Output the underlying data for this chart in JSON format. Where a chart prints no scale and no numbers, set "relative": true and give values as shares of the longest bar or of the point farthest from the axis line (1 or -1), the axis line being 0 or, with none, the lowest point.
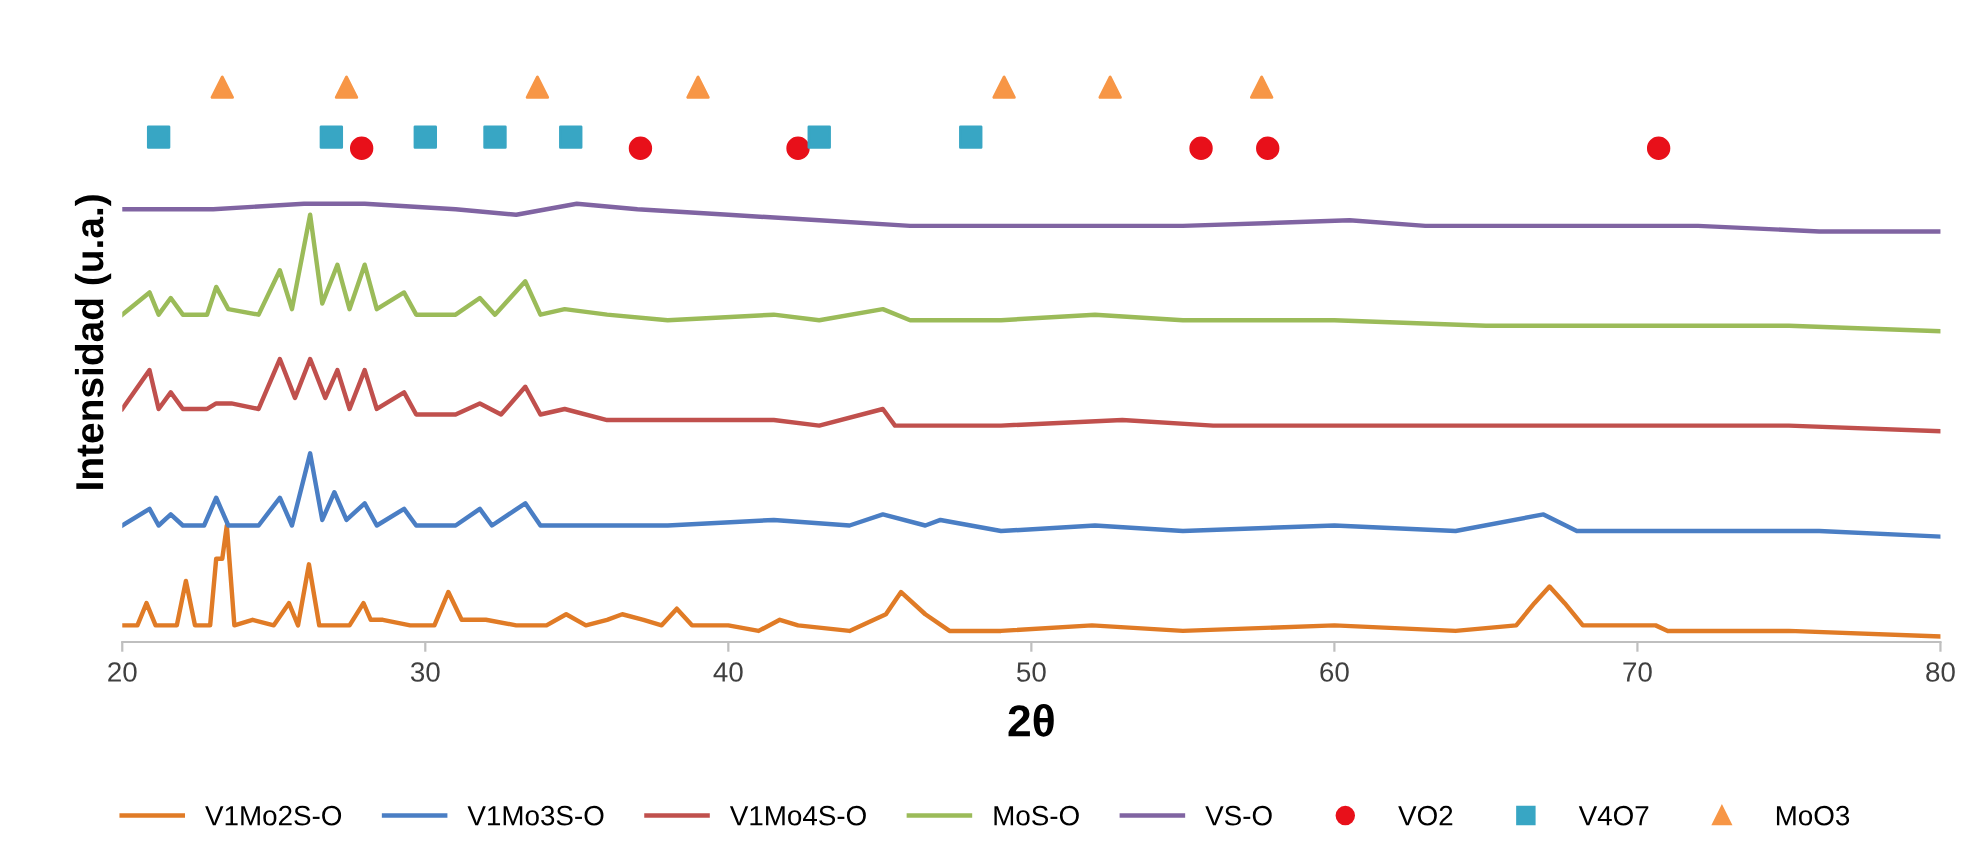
{
  "chart_data": {
    "type": "line",
    "relative": true,
    "xlabel": "2θ",
    "ylabel": "Intensidad (u.a.)",
    "xlim": [
      20,
      80
    ],
    "xticks": [
      20,
      30,
      40,
      50,
      60,
      70,
      80
    ],
    "grid": false,
    "legend": "bottom",
    "marker": "none",
    "series": [
      {
        "name": "V1Mo2S-O",
        "color": "#e07b26",
        "x": [
          20.0,
          20.5,
          20.8,
          21.1,
          21.8,
          22.1,
          22.4,
          22.9,
          23.1,
          23.3,
          23.45,
          23.7,
          24.3,
          25.0,
          25.5,
          25.8,
          26.16,
          26.5,
          27.5,
          27.96,
          28.2,
          28.6,
          29.5,
          30.3,
          30.76,
          31.2,
          32.0,
          33.0,
          34.0,
          34.65,
          35.3,
          36.0,
          36.5,
          37.2,
          37.8,
          38.3,
          38.8,
          40.0,
          41.0,
          41.7,
          42.3,
          44.0,
          45.2,
          45.7,
          46.5,
          47.3,
          49.0,
          52.0,
          55.0,
          60.0,
          64.0,
          66.0,
          66.6,
          67.1,
          67.6,
          68.2,
          70.6,
          71.0,
          75.0,
          80.0
        ],
        "values": [
          0.03,
          0.03,
          0.07,
          0.03,
          0.03,
          0.11,
          0.03,
          0.03,
          0.15,
          0.15,
          0.21,
          0.03,
          0.04,
          0.03,
          0.07,
          0.03,
          0.14,
          0.03,
          0.03,
          0.07,
          0.04,
          0.04,
          0.03,
          0.03,
          0.09,
          0.04,
          0.04,
          0.03,
          0.03,
          0.05,
          0.03,
          0.04,
          0.05,
          0.04,
          0.03,
          0.06,
          0.03,
          0.03,
          0.02,
          0.04,
          0.03,
          0.02,
          0.05,
          0.09,
          0.05,
          0.02,
          0.02,
          0.03,
          0.02,
          0.03,
          0.02,
          0.03,
          0.07,
          0.1,
          0.07,
          0.03,
          0.03,
          0.02,
          0.02,
          0.01
        ]
      },
      {
        "name": "V1Mo3S-O",
        "color": "#4a7ec4",
        "x": [
          20.0,
          20.9,
          21.2,
          21.6,
          22.0,
          22.7,
          23.1,
          23.5,
          24.5,
          25.2,
          25.6,
          26.2,
          26.6,
          27.0,
          27.4,
          28.0,
          28.4,
          29.3,
          29.7,
          31.0,
          31.8,
          32.2,
          33.3,
          33.8,
          36.0,
          38.0,
          41.5,
          44.0,
          45.1,
          46.5,
          47.0,
          49.0,
          52.1,
          55.0,
          60.0,
          64.0,
          66.9,
          68.0,
          72.0,
          76.0,
          80.0
        ],
        "values": [
          0.21,
          0.24,
          0.21,
          0.23,
          0.21,
          0.21,
          0.26,
          0.21,
          0.21,
          0.26,
          0.21,
          0.34,
          0.22,
          0.27,
          0.22,
          0.25,
          0.21,
          0.24,
          0.21,
          0.21,
          0.24,
          0.21,
          0.25,
          0.21,
          0.21,
          0.21,
          0.22,
          0.21,
          0.23,
          0.21,
          0.22,
          0.2,
          0.21,
          0.2,
          0.21,
          0.2,
          0.23,
          0.2,
          0.2,
          0.2,
          0.19
        ]
      },
      {
        "name": "V1Mo4S-O",
        "color": "#c0504d",
        "x": [
          20.0,
          20.9,
          21.2,
          21.6,
          22.0,
          22.8,
          23.1,
          23.6,
          24.5,
          25.2,
          25.7,
          26.2,
          26.7,
          27.1,
          27.5,
          28.0,
          28.4,
          29.3,
          29.7,
          31.0,
          31.8,
          32.5,
          33.3,
          33.8,
          34.6,
          36.0,
          38.0,
          41.5,
          43.0,
          45.1,
          45.5,
          49.0,
          53.0,
          56.0,
          60.0,
          65.0,
          70.0,
          75.0,
          80.0
        ],
        "values": [
          0.42,
          0.49,
          0.42,
          0.45,
          0.42,
          0.42,
          0.43,
          0.43,
          0.42,
          0.51,
          0.44,
          0.51,
          0.44,
          0.49,
          0.42,
          0.49,
          0.42,
          0.45,
          0.41,
          0.41,
          0.43,
          0.41,
          0.46,
          0.41,
          0.42,
          0.4,
          0.4,
          0.4,
          0.39,
          0.42,
          0.39,
          0.39,
          0.4,
          0.39,
          0.39,
          0.39,
          0.39,
          0.39,
          0.38
        ]
      },
      {
        "name": "MoS-O",
        "color": "#9bbb59",
        "x": [
          20.0,
          20.9,
          21.2,
          21.6,
          22.0,
          22.8,
          23.1,
          23.5,
          24.5,
          25.2,
          25.6,
          26.2,
          26.6,
          27.1,
          27.5,
          28.0,
          28.4,
          29.3,
          29.7,
          31.0,
          31.8,
          32.3,
          33.3,
          33.8,
          34.6,
          36.0,
          38.0,
          41.5,
          43.0,
          45.1,
          46.0,
          49.0,
          52.1,
          55.0,
          60.0,
          65.0,
          70.0,
          75.0,
          80.0
        ],
        "values": [
          0.59,
          0.63,
          0.59,
          0.62,
          0.59,
          0.59,
          0.64,
          0.6,
          0.59,
          0.67,
          0.6,
          0.77,
          0.61,
          0.68,
          0.6,
          0.68,
          0.6,
          0.63,
          0.59,
          0.59,
          0.62,
          0.59,
          0.65,
          0.59,
          0.6,
          0.59,
          0.58,
          0.59,
          0.58,
          0.6,
          0.58,
          0.58,
          0.59,
          0.58,
          0.58,
          0.57,
          0.57,
          0.57,
          0.56
        ]
      },
      {
        "name": "VS-O",
        "color": "#8064a2",
        "x": [
          20,
          23,
          26,
          28,
          31,
          33,
          35,
          37,
          40,
          43,
          46,
          50,
          55,
          60.5,
          63,
          67,
          72,
          76,
          80
        ],
        "values": [
          0.78,
          0.78,
          0.79,
          0.79,
          0.78,
          0.77,
          0.79,
          0.78,
          0.77,
          0.76,
          0.75,
          0.75,
          0.75,
          0.76,
          0.75,
          0.75,
          0.75,
          0.74,
          0.74
        ]
      },
      {
        "name": "VO2",
        "type": "scatter",
        "marker": "circle",
        "color": "#e8101a",
        "x": [
          27.9,
          37.1,
          42.3,
          55.6,
          57.8,
          70.7
        ],
        "values": [
          0.89,
          0.89,
          0.89,
          0.89,
          0.89,
          0.89
        ]
      },
      {
        "name": "V4O7",
        "type": "scatter",
        "marker": "square",
        "color": "#38a6c4",
        "x": [
          21.2,
          26.9,
          30.0,
          32.3,
          34.8,
          43.0,
          48.0
        ],
        "values": [
          0.91,
          0.91,
          0.91,
          0.91,
          0.91,
          0.91,
          0.91
        ]
      },
      {
        "name": "MoO3",
        "type": "scatter",
        "marker": "triangle",
        "color": "#f79646",
        "x": [
          23.3,
          27.4,
          33.7,
          39.0,
          49.1,
          52.6,
          57.6
        ],
        "values": [
          1.0,
          1.0,
          1.0,
          1.0,
          1.0,
          1.0,
          1.0
        ]
      }
    ]
  }
}
